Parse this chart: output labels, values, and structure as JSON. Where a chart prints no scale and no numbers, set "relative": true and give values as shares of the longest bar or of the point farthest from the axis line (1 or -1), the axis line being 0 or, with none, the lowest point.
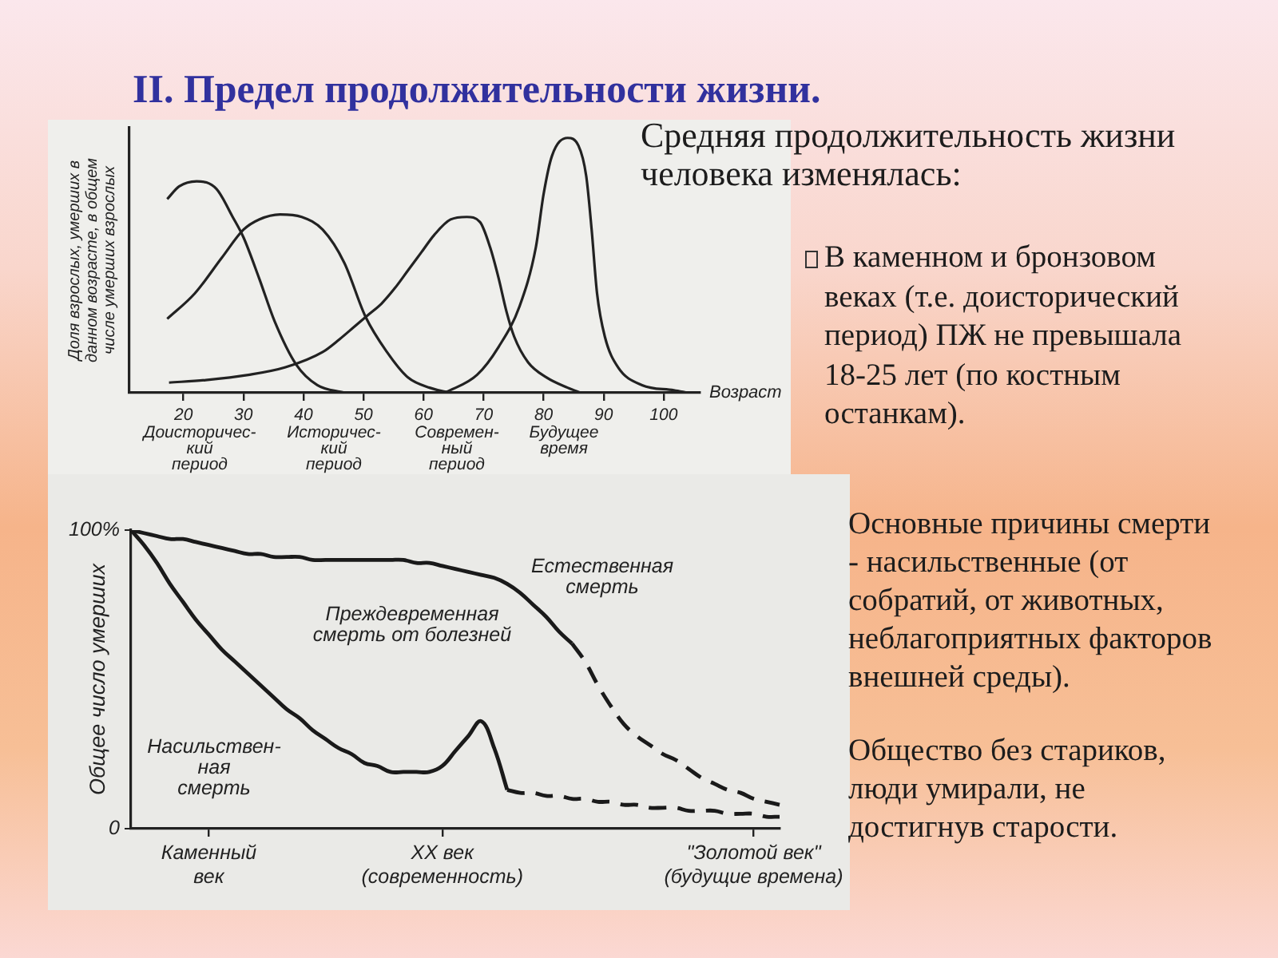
{
  "chart_data": [
    {
      "type": "other",
      "title": "II. Предел продолжительности жизни.",
      "annotations": [
        "Средняя продолжительность жизни человека изменялась:",
        "В каменном и бронзовом веках (т.е. доисторический период) ПЖ не превышала 18-25 лет (по костным останкам).",
        "Основные причины смерти - насильственные (от собратий, от животных, неблагоприятных факторов внешней среды).",
        "Общество без стариков, люди умирали, не достигнув старости."
      ]
    },
    {
      "type": "line",
      "relative": true,
      "xlabel": "Возраст",
      "ylabel": "Доля взрослых, умерших в\nданном возрасте, в общем\nчисле умерших взрослых",
      "xlim": [
        11,
        106
      ],
      "xticks": [
        20,
        30,
        40,
        50,
        60,
        70,
        80,
        90,
        100
      ],
      "marker": "none",
      "series": [
        {
          "color": "#222222",
          "x": [
            17.3,
            19.3,
            22.2,
            25.5,
            28.2,
            30,
            32.6,
            35.2,
            38.8,
            42.3,
            46.8
          ],
          "values": [
            0.76,
            0.81,
            0.83,
            0.8,
            0.69,
            0.61,
            0.45,
            0.28,
            0.11,
            0.03,
            0.0
          ]
        },
        {
          "color": "#222222",
          "x": [
            17.3,
            21.9,
            26.4,
            30,
            32.6,
            36.1,
            39.7,
            43.2,
            46.8,
            50.3,
            53.9,
            57.4,
            61,
            65.4,
            68
          ],
          "values": [
            0.29,
            0.39,
            0.53,
            0.64,
            0.68,
            0.7,
            0.69,
            0.64,
            0.51,
            0.3,
            0.16,
            0.06,
            0.02,
            0.0,
            0.0
          ]
        },
        {
          "color": "#222222",
          "x": [
            17.6,
            23.7,
            30.8,
            37,
            43.2,
            46,
            48.5,
            51,
            53,
            55.2,
            57.4,
            59.6,
            61.8,
            64.5,
            67.2,
            69.4,
            71.1,
            72.5,
            73.8,
            75.1,
            77.4,
            80.5,
            84,
            86.2
          ],
          "values": [
            0.04,
            0.05,
            0.07,
            0.1,
            0.16,
            0.21,
            0.26,
            0.31,
            0.35,
            0.41,
            0.48,
            0.55,
            0.62,
            0.68,
            0.69,
            0.67,
            0.57,
            0.45,
            0.32,
            0.22,
            0.12,
            0.06,
            0.02,
            0.0
          ]
        },
        {
          "color": "#222222",
          "x": [
            63.6,
            68.9,
            72.5,
            76,
            78.7,
            80,
            81.4,
            84,
            85.8,
            87.1,
            88,
            88.9,
            90.2,
            92.4,
            96.4,
            101.7,
            104
          ],
          "values": [
            0.0,
            0.07,
            0.18,
            0.34,
            0.57,
            0.78,
            0.93,
            1,
            0.97,
            0.85,
            0.64,
            0.39,
            0.22,
            0.1,
            0.03,
            0.01,
            0.0
          ]
        }
      ],
      "annotations": [
        "Доисторичес-\nкий\nпериод",
        "Историчес-\nкий\nпериод",
        "Современ-\nный\nпериод",
        "Будущее\nвремя"
      ]
    },
    {
      "type": "line",
      "ylabel": "Общее число умерших",
      "categories": [
        null,
        null,
        null,
        null,
        null,
        null,
        "Каменный\nвек",
        null,
        null,
        null,
        null,
        null,
        null,
        null,
        null,
        null,
        null,
        null,
        null,
        null,
        null,
        null,
        null,
        null,
        "XX век\n(современность)",
        null,
        null,
        null,
        null,
        null,
        null,
        null,
        null,
        null,
        null,
        null,
        null,
        null,
        null,
        null,
        null,
        null,
        null,
        null,
        null,
        null,
        null,
        null,
        "\"Золотой век\"\n(будущие времена)",
        null,
        null
      ],
      "ylim": [
        0,
        100
      ],
      "yticks": [
        {
          "value": 0,
          "label": "0"
        },
        {
          "value": 100,
          "label": "100%"
        }
      ],
      "marker": "none",
      "series": [
        {
          "color": "#1a1a1a",
          "line_style": "solid",
          "values": [
            100,
            99,
            98,
            97,
            97,
            96,
            95,
            94,
            93,
            92,
            92,
            91,
            91,
            91,
            90,
            90,
            90,
            90,
            90,
            90,
            90,
            90,
            89,
            89,
            88,
            87,
            86,
            85,
            84,
            82,
            79,
            75,
            71,
            66,
            62,
            null,
            null,
            null,
            null,
            null,
            null,
            null,
            null,
            null,
            null,
            null,
            null,
            null,
            null,
            null,
            null
          ]
        },
        {
          "color": "#1a1a1a",
          "line_style": "dashed",
          "values": [
            null,
            null,
            null,
            null,
            null,
            null,
            null,
            null,
            null,
            null,
            null,
            null,
            null,
            null,
            null,
            null,
            null,
            null,
            null,
            null,
            null,
            null,
            null,
            null,
            null,
            null,
            null,
            null,
            null,
            null,
            null,
            null,
            null,
            null,
            62,
            56,
            48,
            41,
            35,
            31,
            28,
            25,
            23,
            20,
            17,
            15,
            13,
            12,
            10,
            9,
            8
          ]
        },
        {
          "color": "#1a1a1a",
          "line_style": "solid",
          "values": [
            100,
            95,
            89,
            82,
            76,
            70,
            65,
            60,
            56,
            52,
            48,
            44,
            40,
            37,
            33,
            30,
            27,
            25,
            22,
            21,
            19,
            19,
            19,
            19,
            21,
            26,
            31,
            36,
            27,
            13,
            null,
            null,
            null,
            null,
            null,
            null,
            null,
            null,
            null,
            null,
            null,
            null,
            null,
            null,
            null,
            null,
            null,
            null,
            null,
            null,
            null
          ]
        },
        {
          "color": "#1a1a1a",
          "line_style": "dashed",
          "values": [
            null,
            null,
            null,
            null,
            null,
            null,
            null,
            null,
            null,
            null,
            null,
            null,
            null,
            null,
            null,
            null,
            null,
            null,
            null,
            null,
            null,
            null,
            null,
            null,
            null,
            null,
            null,
            null,
            null,
            13,
            12,
            12,
            11,
            11,
            10,
            10,
            9,
            9,
            8,
            8,
            7,
            7,
            7,
            6,
            6,
            6,
            5,
            5,
            5,
            4,
            4
          ]
        }
      ],
      "annotations": [
        "Естественная\nсмерть",
        "Преждевременная\nсмерть от болезней",
        "Насильствен-\nная\nсмерть"
      ]
    }
  ]
}
